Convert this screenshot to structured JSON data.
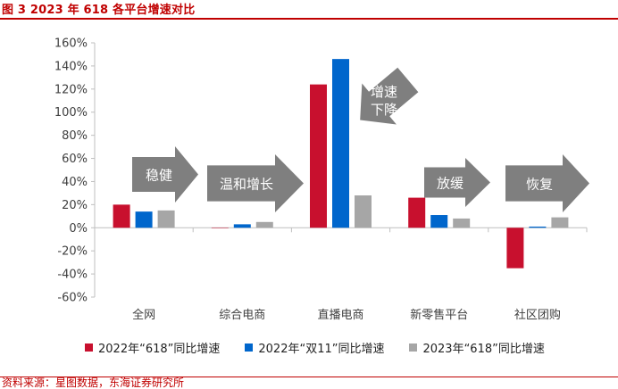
{
  "header": {
    "title": "图 3 2023 年 618 各平台增速对比"
  },
  "footer": {
    "source": "资料来源：星图数据，东海证券研究所"
  },
  "chart_data": {
    "type": "bar",
    "title": "",
    "xlabel": "",
    "ylabel": "",
    "categories": [
      "全网",
      "综合电商",
      "直播电商",
      "新零售平台",
      "社区团购"
    ],
    "ylim": [
      -60,
      160
    ],
    "yticks": [
      "160%",
      "140%",
      "120%",
      "100%",
      "80%",
      "60%",
      "40%",
      "20%",
      "0%",
      "-20%",
      "-40%",
      "-60%"
    ],
    "ytick_values": [
      160,
      140,
      120,
      100,
      80,
      60,
      40,
      20,
      0,
      -20,
      -40,
      -60
    ],
    "grid": false,
    "legend_position": "bottom",
    "series": [
      {
        "name": "2022年“618”同比增速",
        "color": "#c8102e",
        "values": [
          20,
          0,
          124,
          26,
          -35
        ]
      },
      {
        "name": "2022年“双11”同比增速",
        "color": "#0066cc",
        "values": [
          14,
          3,
          146,
          11,
          1
        ]
      },
      {
        "name": "2023年“618”同比增速",
        "color": "#a6a6a6",
        "values": [
          15,
          5,
          28,
          8,
          9
        ]
      }
    ],
    "annotations": [
      {
        "text": "稳健",
        "category": "全网"
      },
      {
        "text": "温和增长",
        "category": "综合电商"
      },
      {
        "text": "增速\n下降",
        "category": "直播电商"
      },
      {
        "text": "放缓",
        "category": "新零售平台"
      },
      {
        "text": "恢复",
        "category": "社区团购"
      }
    ]
  }
}
